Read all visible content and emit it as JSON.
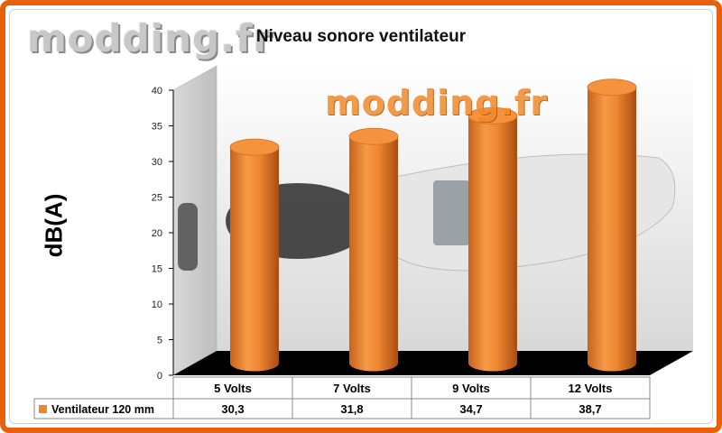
{
  "branding": {
    "logo_text": "modding.fr",
    "watermark_text": "modding.fr"
  },
  "chart_data": {
    "type": "bar",
    "title": "Niveau sonore ventilateur",
    "ylabel": "dB(A)",
    "xlabel": "",
    "categories": [
      "5 Volts",
      "7 Volts",
      "9 Volts",
      "12 Volts"
    ],
    "series": [
      {
        "name": "Ventilateur 120 mm",
        "values": [
          30.3,
          31.8,
          34.7,
          38.7
        ],
        "value_labels": [
          "30,3",
          "31,8",
          "34,7",
          "38,7"
        ],
        "color": "#ee8630"
      }
    ],
    "ylim": [
      0,
      40
    ],
    "yticks": [
      0,
      5,
      10,
      15,
      20,
      25,
      30,
      35,
      40
    ],
    "grid": false,
    "legend": "data-table",
    "style": "3d-cylinder"
  },
  "colors": {
    "frame": "#e8600c",
    "bar": "#ee8630",
    "floor": "#000000"
  }
}
